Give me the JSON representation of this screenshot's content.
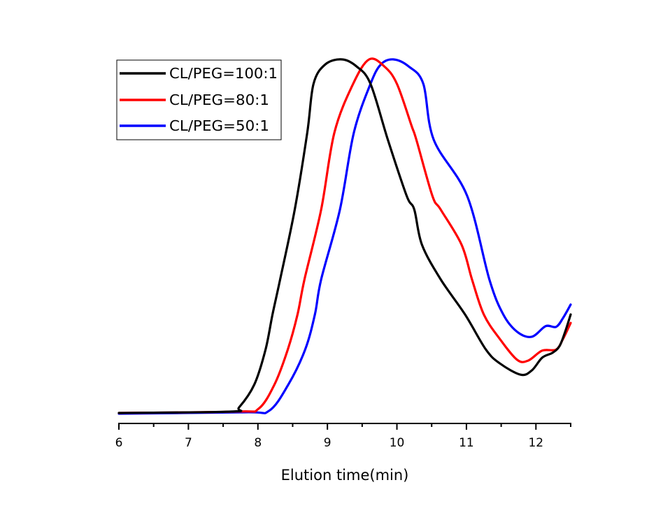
{
  "chart_data": {
    "type": "line",
    "title": "",
    "xlabel": "Elution time(min)",
    "ylabel": "",
    "xlim": [
      6,
      12.5
    ],
    "ylim": [
      0,
      1
    ],
    "x_ticks": [
      6,
      7,
      8,
      9,
      10,
      11,
      12
    ],
    "x_tick_labels": [
      "6",
      "7",
      "8",
      "9",
      "10",
      "11",
      "12"
    ],
    "x_minor_ticks": [
      6.5,
      7.5,
      8.5,
      9.5,
      10.5,
      11.5,
      12.5
    ],
    "y_axis_shown": false,
    "grid": false,
    "legend_position": "top-left",
    "series": [
      {
        "name": "CL/PEG=100:1",
        "color": "#000000",
        "x": [
          6.0,
          7.61,
          7.73,
          7.95,
          8.11,
          8.21,
          8.32,
          8.53,
          8.71,
          8.8,
          8.97,
          9.21,
          9.42,
          9.62,
          9.87,
          10.14,
          10.25,
          10.36,
          10.63,
          10.98,
          11.28,
          11.48,
          11.78,
          11.94,
          12.09,
          12.24,
          12.34,
          12.42,
          12.5
        ],
        "y": [
          0.002,
          0.006,
          0.018,
          0.083,
          0.181,
          0.28,
          0.379,
          0.576,
          0.793,
          0.931,
          0.986,
          1.0,
          0.98,
          0.931,
          0.773,
          0.615,
          0.576,
          0.477,
          0.379,
          0.28,
          0.181,
          0.142,
          0.11,
          0.122,
          0.158,
          0.172,
          0.191,
          0.231,
          0.28
        ]
      },
      {
        "name": "CL/PEG=80:1",
        "color": "#ff0000",
        "x": [
          6.0,
          7.71,
          8.01,
          8.24,
          8.43,
          8.57,
          8.67,
          8.91,
          9.1,
          9.37,
          9.6,
          9.82,
          10.0,
          10.21,
          10.28,
          10.51,
          10.63,
          10.93,
          11.08,
          11.25,
          11.48,
          11.73,
          11.89,
          12.09,
          12.29,
          12.39,
          12.5
        ],
        "y": [
          0.002,
          0.006,
          0.014,
          0.083,
          0.181,
          0.28,
          0.379,
          0.576,
          0.793,
          0.931,
          1.0,
          0.98,
          0.931,
          0.813,
          0.773,
          0.615,
          0.576,
          0.477,
          0.379,
          0.28,
          0.211,
          0.152,
          0.15,
          0.178,
          0.181,
          0.211,
          0.256
        ]
      },
      {
        "name": "CL/PEG=50:1",
        "color": "#0000ff",
        "x": [
          6.0,
          7.81,
          8.16,
          8.44,
          8.68,
          8.82,
          8.91,
          9.18,
          9.38,
          9.62,
          9.77,
          9.95,
          10.17,
          10.38,
          10.53,
          11.01,
          11.33,
          11.53,
          11.73,
          11.94,
          12.14,
          12.29,
          12.39,
          12.5
        ],
        "y": [
          0.0,
          0.004,
          0.008,
          0.083,
          0.181,
          0.28,
          0.379,
          0.576,
          0.793,
          0.931,
          0.986,
          1.0,
          0.98,
          0.931,
          0.773,
          0.615,
          0.379,
          0.28,
          0.231,
          0.217,
          0.247,
          0.245,
          0.27,
          0.308
        ]
      }
    ]
  }
}
